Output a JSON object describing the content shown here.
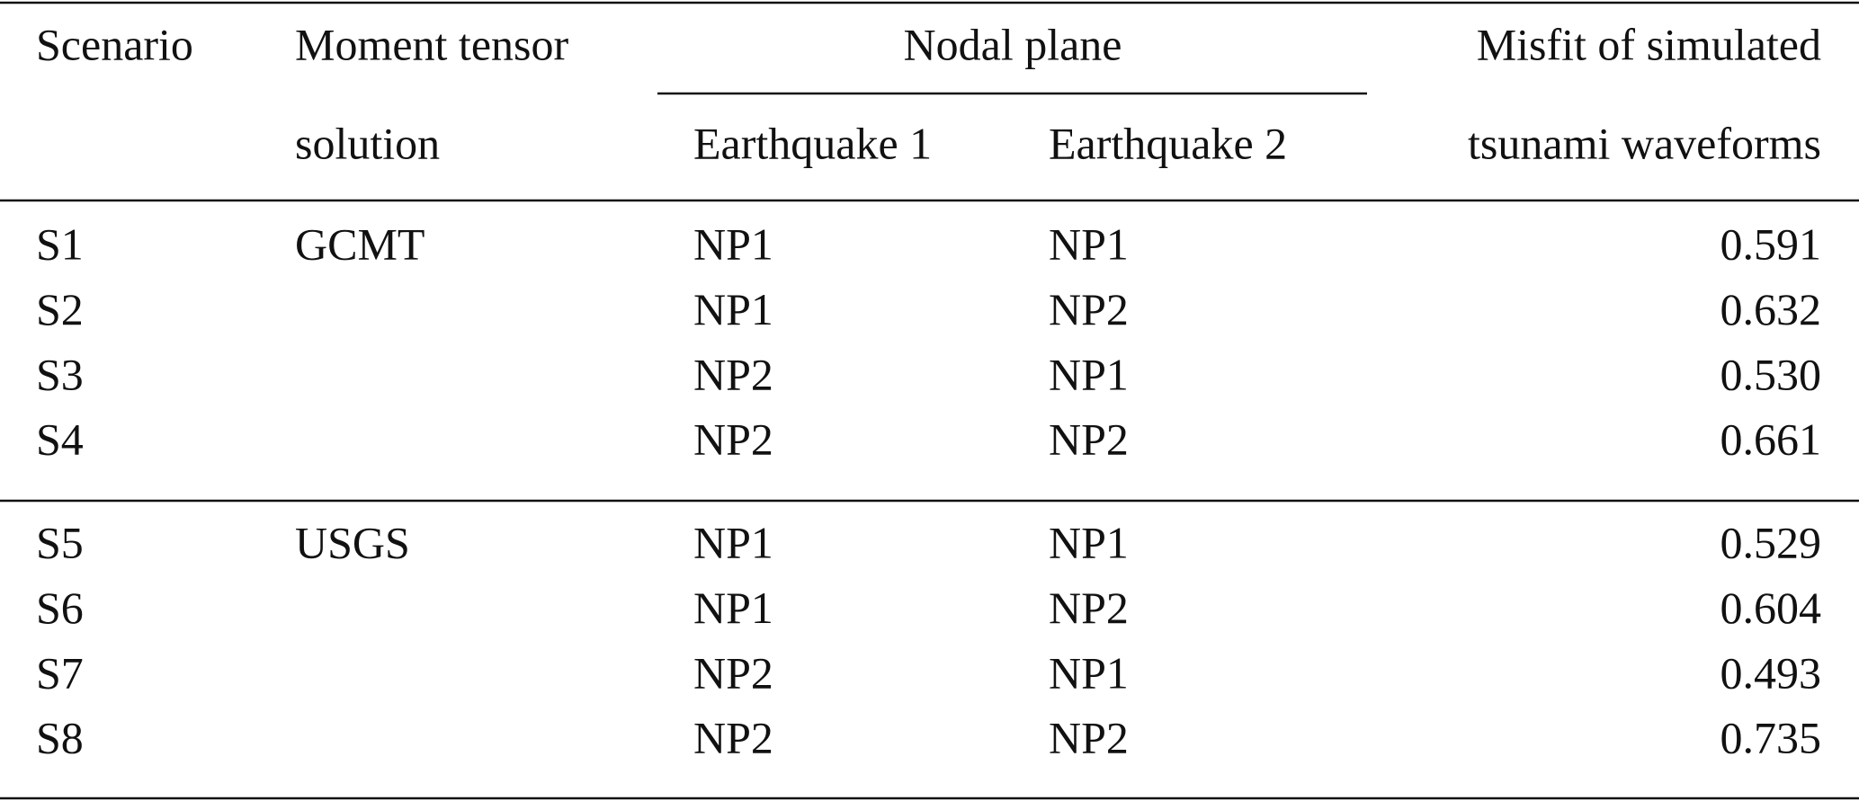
{
  "header": {
    "scenario": "Scenario",
    "moment_tensor": [
      "Moment tensor",
      "solution"
    ],
    "nodal_plane": "Nodal plane",
    "earthquake_1": "Earthquake 1",
    "earthquake_2": "Earthquake 2",
    "misfit": [
      "Misfit of simulated",
      "tsunami waveforms"
    ]
  },
  "groups": [
    {
      "solution": "GCMT",
      "rows": [
        [
          "S1",
          "NP1",
          "NP1",
          "0.591"
        ],
        [
          "S2",
          "NP1",
          "NP2",
          "0.632"
        ],
        [
          "S3",
          "NP2",
          "NP1",
          "0.530"
        ],
        [
          "S4",
          "NP2",
          "NP2",
          "0.661"
        ]
      ]
    },
    {
      "solution": "USGS",
      "rows": [
        [
          "S5",
          "NP1",
          "NP1",
          "0.529"
        ],
        [
          "S6",
          "NP1",
          "NP2",
          "0.604"
        ],
        [
          "S7",
          "NP2",
          "NP1",
          "0.493"
        ],
        [
          "S8",
          "NP2",
          "NP2",
          "0.735"
        ]
      ]
    }
  ]
}
